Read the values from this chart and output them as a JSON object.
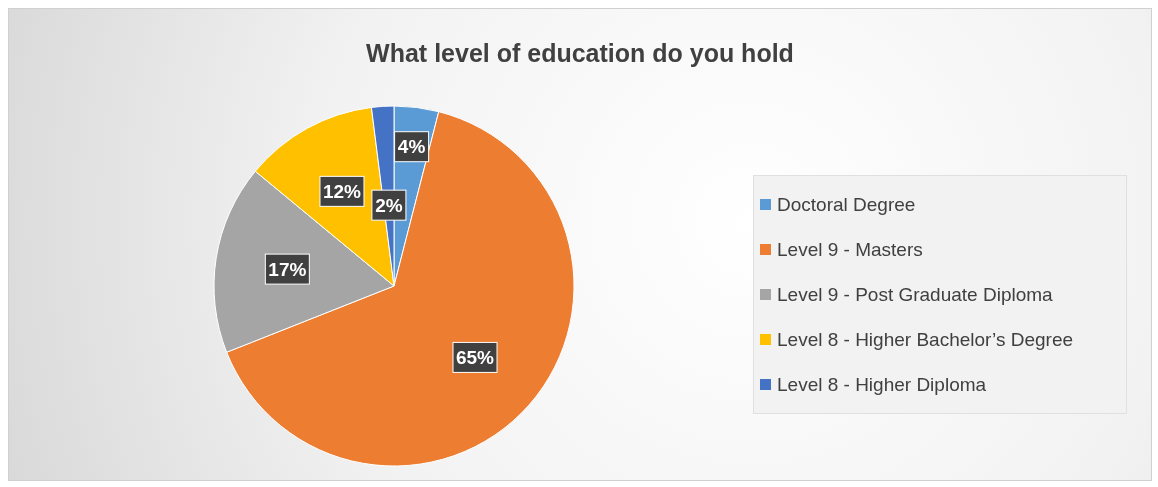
{
  "chart_data": {
    "type": "pie",
    "title": "What level of education do you hold",
    "categories": [
      "Doctoral Degree",
      "Level 9 - Masters",
      "Level 9 - Post Graduate Diploma",
      "Level 8 - Higher Bachelor’s Degree",
      "Level 8 - Higher Diploma"
    ],
    "values": [
      4,
      65,
      17,
      12,
      2
    ],
    "colors": [
      "#5b9bd5",
      "#ed7d31",
      "#a5a5a5",
      "#ffc000",
      "#4472c4"
    ],
    "value_labels": [
      "4%",
      "65%",
      "17%",
      "12%",
      "2%"
    ],
    "legend": "right"
  }
}
